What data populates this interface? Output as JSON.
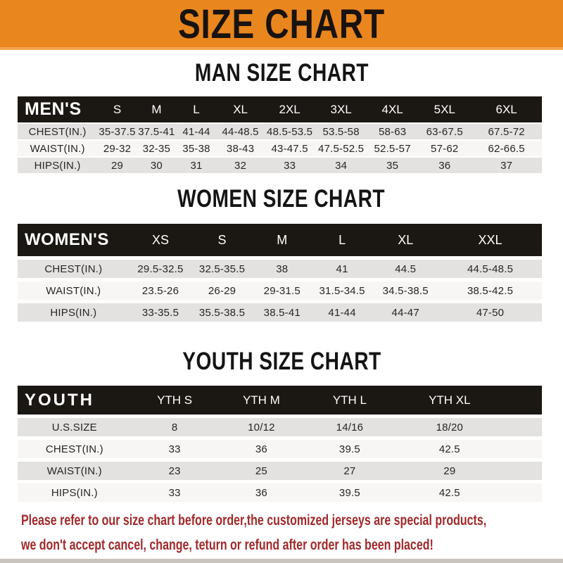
{
  "header": {
    "title": "SIZE CHART"
  },
  "colors": {
    "banner_orange": "#ea861e",
    "banner_edge_orange": "#f2a44f",
    "header_bar_black": "#1b1713",
    "row_gray": "#e3e2e0",
    "row_light": "#f7f6f4",
    "footer_red": "#a1292a",
    "bottom_strip_gray": "#c9c4bd"
  },
  "chart_data": [
    {
      "type": "table",
      "title": "MAN SIZE CHART",
      "header_label": "MEN'S",
      "sizes": [
        "S",
        "M",
        "L",
        "XL",
        "2XL",
        "3XL",
        "4XL",
        "5XL",
        "6XL"
      ],
      "rows": [
        {
          "label": "CHEST(IN.)",
          "values": [
            "35-37.5",
            "37.5-41",
            "41-44",
            "44-48.5",
            "48.5-53.5",
            "53.5-58",
            "58-63",
            "63-67.5",
            "67.5-72"
          ]
        },
        {
          "label": "WAIST(IN.)",
          "values": [
            "29-32",
            "32-35",
            "35-38",
            "38-43",
            "43-47.5",
            "47.5-52.5",
            "52.5-57",
            "57-62",
            "62-66.5"
          ]
        },
        {
          "label": "HIPS(IN.)",
          "values": [
            "29",
            "30",
            "31",
            "32",
            "33",
            "34",
            "35",
            "36",
            "37"
          ]
        }
      ]
    },
    {
      "type": "table",
      "title": "WOMEN SIZE CHART",
      "header_label": "WOMEN'S",
      "sizes": [
        "XS",
        "S",
        "M",
        "L",
        "XL",
        "XXL"
      ],
      "rows": [
        {
          "label": "CHEST(IN.)",
          "values": [
            "29.5-32.5",
            "32.5-35.5",
            "38",
            "41",
            "44.5",
            "44.5-48.5"
          ]
        },
        {
          "label": "WAIST(IN.)",
          "values": [
            "23.5-26",
            "26-29",
            "29-31.5",
            "31.5-34.5",
            "34.5-38.5",
            "38.5-42.5"
          ]
        },
        {
          "label": "HIPS(IN.)",
          "values": [
            "33-35.5",
            "35.5-38.5",
            "38.5-41",
            "41-44",
            "44-47",
            "47-50"
          ]
        }
      ]
    },
    {
      "type": "table",
      "title": "YOUTH SIZE CHART",
      "header_label": "YOUTH",
      "sizes": [
        "YTH S",
        "YTH M",
        "YTH L",
        "YTH XL"
      ],
      "rows": [
        {
          "label": "U.S.SIZE",
          "values": [
            "8",
            "10/12",
            "14/16",
            "18/20"
          ]
        },
        {
          "label": "CHEST(IN.)",
          "values": [
            "33",
            "36",
            "39.5",
            "42.5"
          ]
        },
        {
          "label": "WAIST(IN.)",
          "values": [
            "23",
            "25",
            "27",
            "29"
          ]
        },
        {
          "label": "HIPS(IN.)",
          "values": [
            "33",
            "36",
            "39.5",
            "42.5"
          ]
        }
      ]
    }
  ],
  "footer": {
    "line1": "Please refer to our size chart before order,the customized jerseys are special products,",
    "line2": "we don't accept cancel, change, teturn or refund after order has been placed!"
  }
}
